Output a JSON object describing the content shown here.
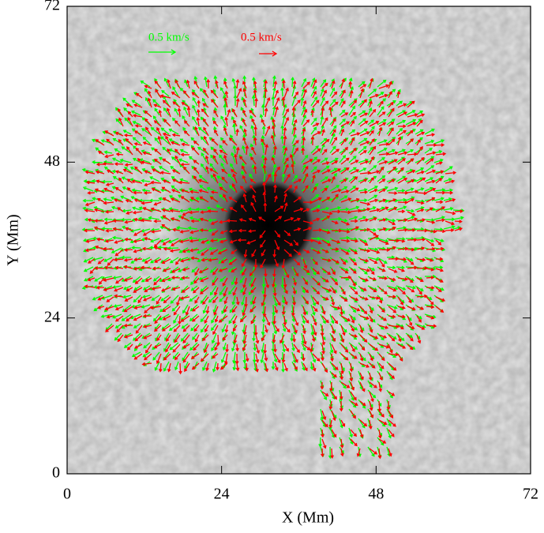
{
  "chart_data": {
    "type": "vector-field",
    "x_label": "X (Mm)",
    "y_label": "Y (Mm)",
    "xlim": [
      0,
      72
    ],
    "ylim": [
      0,
      72
    ],
    "xticks": [
      0,
      24,
      48,
      72
    ],
    "yticks": [
      0,
      24,
      48,
      72
    ],
    "series": [
      {
        "name": "0.5 km/s",
        "color": "#00ff00"
      },
      {
        "name": "0.5 km/s",
        "color": "#ff0000"
      }
    ]
  }
}
